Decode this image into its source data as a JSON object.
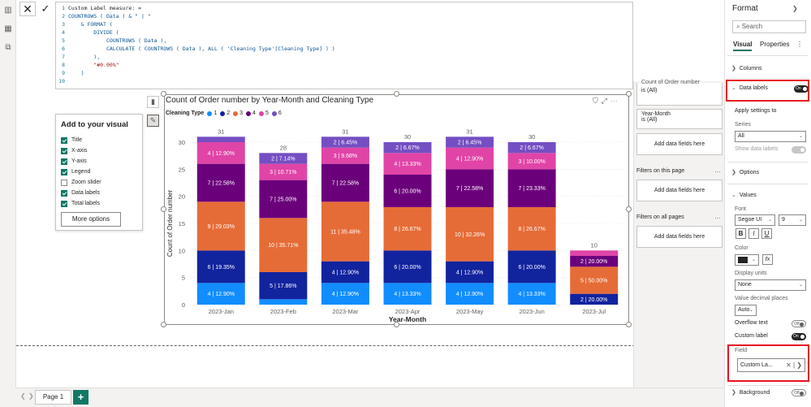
{
  "formula": {
    "cancel_icon": "close-icon",
    "commit_icon": "check-icon",
    "lines": [
      {
        "n": "1",
        "text": "Custom Label measure: ="
      },
      {
        "n": "2",
        "text": "COUNTROWS ( Data ) & \" | \""
      },
      {
        "n": "3",
        "text": "    & FORMAT ("
      },
      {
        "n": "4",
        "text": "        DIVIDE ("
      },
      {
        "n": "5",
        "text": "            COUNTROWS ( Data ),"
      },
      {
        "n": "6",
        "text": "            CALCULATE ( COUNTROWS ( Data ), ALL ( 'Cleaning Type'[Cleaning Type] ) )"
      },
      {
        "n": "7",
        "text": "        ),"
      },
      {
        "n": "8",
        "text": "        \"#0.00%\""
      },
      {
        "n": "9",
        "text": "    )"
      },
      {
        "n": "10",
        "text": ""
      }
    ]
  },
  "add_visual": {
    "title": "Add to your visual",
    "items": [
      {
        "label": "Title",
        "checked": true
      },
      {
        "label": "X-axis",
        "checked": true
      },
      {
        "label": "Y-axis",
        "checked": true
      },
      {
        "label": "Legend",
        "checked": true
      },
      {
        "label": "Zoom slider",
        "checked": false
      },
      {
        "label": "Data labels",
        "checked": true
      },
      {
        "label": "Total labels",
        "checked": true
      }
    ],
    "more_options": "More options"
  },
  "chart_data": {
    "type": "bar",
    "stacked": true,
    "title": "Count of Order number by Year-Month and Cleaning Type",
    "xlabel": "Year-Month",
    "ylabel": "Count of Order number",
    "ylim": [
      0,
      32
    ],
    "yticks": [
      0,
      5,
      10,
      15,
      20,
      25,
      30
    ],
    "legend_title": "Cleaning Type",
    "categories": [
      "2023-Jan",
      "2023-Feb",
      "2023-Mar",
      "2023-Apr",
      "2023-May",
      "2023-Jun",
      "2023-Jul"
    ],
    "totals": [
      31,
      28,
      31,
      30,
      31,
      30,
      10
    ],
    "series": [
      {
        "name": "1",
        "color": "#118DFF",
        "values": [
          4,
          1,
          4,
          4,
          4,
          4,
          0
        ],
        "labels": [
          "4 | 12.90%",
          "",
          "4 | 12.90%",
          "4 | 13.33%",
          "4 | 12.90%",
          "4 | 13.33%",
          ""
        ]
      },
      {
        "name": "2",
        "color": "#12239E",
        "values": [
          6,
          5,
          4,
          6,
          4,
          6,
          2
        ],
        "labels": [
          "6 | 19.35%",
          "5 | 17.86%",
          "4 | 12.90%",
          "6 | 20.00%",
          "4 | 12.90%",
          "6 | 20.00%",
          ""
        ]
      },
      {
        "name": "3",
        "color": "#E66C37",
        "values": [
          9,
          10,
          11,
          8,
          10,
          8,
          5
        ],
        "labels": [
          "9 | 29.03%",
          "10 | 35.71%",
          "11 | 35.48%",
          "8 | 26.67%",
          "10 | 32.26%",
          "8 | 26.67%",
          "5 | 50.00%"
        ]
      },
      {
        "name": "4",
        "color": "#6B007B",
        "values": [
          7,
          7,
          7,
          6,
          7,
          7,
          2
        ],
        "labels": [
          "7 | 22.58%",
          "7 | 25.00%",
          "7 | 22.58%",
          "6 | 20.00%",
          "7 | 22.58%",
          "7 | 23.33%",
          "2 | 20.00%"
        ]
      },
      {
        "name": "5",
        "color": "#E044A7",
        "values": [
          4,
          3,
          3,
          4,
          4,
          3,
          1
        ],
        "labels": [
          "4 | 12.90%",
          "3 | 10.71%",
          "3 | 9.68%",
          "4 | 13.33%",
          "4 | 12.90%",
          "3 | 10.00%",
          ""
        ]
      },
      {
        "name": "6",
        "color": "#744EC2",
        "values": [
          1,
          2,
          2,
          2,
          2,
          2,
          0
        ],
        "labels": [
          "",
          "2 | 7.14%",
          "2 | 6.45%",
          "2 | 6.67%",
          "2 | 6.45%",
          "2 | 6.67%",
          ""
        ]
      }
    ],
    "extra_labels": [
      {
        "category": "2023-Jul",
        "text": "2 | 20.00%",
        "series": "2"
      }
    ]
  },
  "filters": {
    "card1_title": "Count of Order number",
    "card1_value": "is (All)",
    "card2_title": "Year-Month",
    "card2_value": "is (All)",
    "add_fields": "Add data fields here",
    "on_page": "Filters on this page",
    "on_all": "Filters on all pages",
    "more": "···"
  },
  "format_pane": {
    "title": "Format",
    "search_placeholder": "Search",
    "tab_visual": "Visual",
    "tab_properties": "Properties",
    "sec_columns": "Columns",
    "sec_data_labels": "Data labels",
    "toggle_on": "On",
    "toggle_off": "Off",
    "apply_settings": "Apply settings to",
    "series_label": "Series",
    "series_value": "All",
    "show_data_labels": "Show data labels",
    "sec_options": "Options",
    "sec_values": "Values",
    "font_label": "Font",
    "font_name": "Segoe UI",
    "font_size": "9",
    "bold": "B",
    "italic": "I",
    "underline": "U",
    "color_label": "Color",
    "fx": "fx",
    "display_units_label": "Display units",
    "display_units_value": "None",
    "decimal_label": "Value decimal places",
    "decimal_value": "Auto",
    "overflow_label": "Overflow text",
    "custom_label": "Custom label",
    "field_label": "Field",
    "field_value": "Custom La...",
    "sec_background": "Background",
    "text_color": "#252423"
  },
  "pages": {
    "tab": "Page 1",
    "add": "+"
  }
}
